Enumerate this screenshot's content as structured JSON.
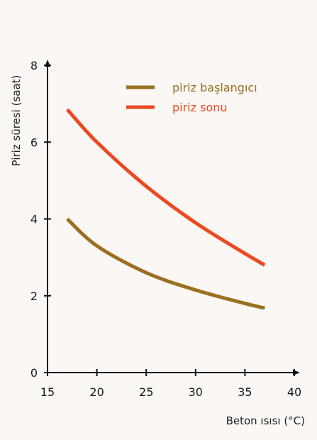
{
  "chart_data": {
    "type": "line",
    "title": "",
    "xlabel": "Beton ısısı (°C)",
    "ylabel": "Piriz süresi (saat)",
    "xlim": [
      15,
      40
    ],
    "ylim": [
      0,
      8
    ],
    "xticks": [
      15,
      20,
      25,
      30,
      35,
      40
    ],
    "yticks": [
      0,
      2,
      4,
      6,
      8
    ],
    "grid": false,
    "legend_position": "top-right",
    "series": [
      {
        "name": "piriz başlangıcı",
        "color": "#9a6f1f",
        "x": [
          17,
          20,
          25,
          30,
          35,
          37
        ],
        "y": [
          4.0,
          3.3,
          2.6,
          2.15,
          1.8,
          1.68
        ]
      },
      {
        "name": "piriz sonu",
        "color": "#ea4a22",
        "x": [
          17,
          20,
          25,
          30,
          35,
          37
        ],
        "y": [
          6.85,
          6.0,
          4.85,
          3.9,
          3.1,
          2.8
        ]
      }
    ]
  }
}
